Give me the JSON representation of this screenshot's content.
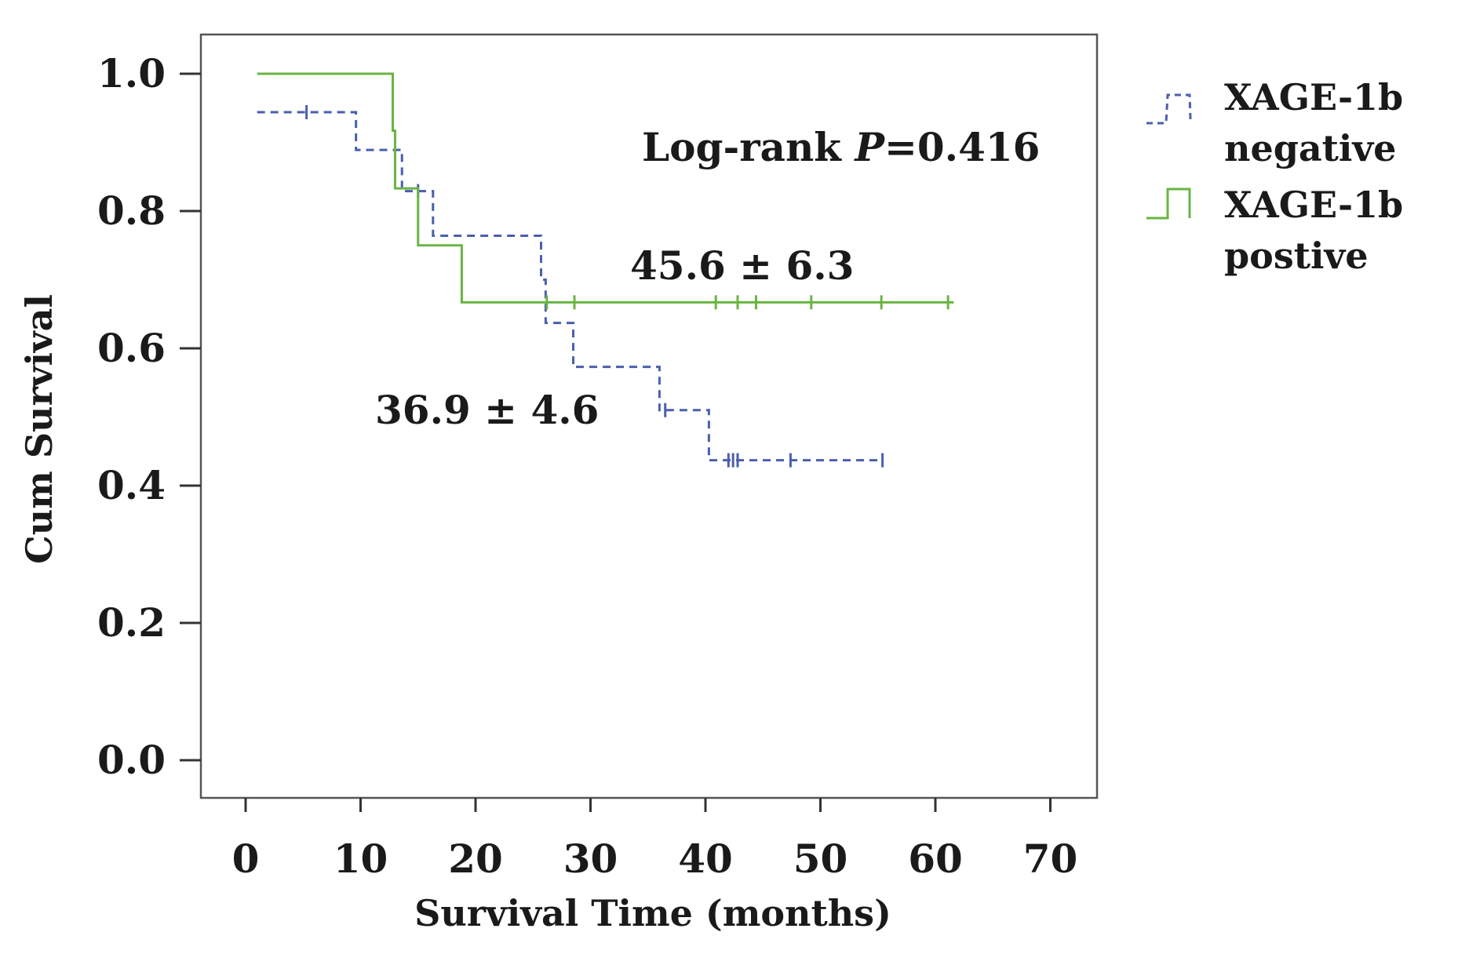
{
  "chart_data": {
    "type": "line",
    "subtype": "kaplan-meier",
    "title": "",
    "xlabel": "Survival Time (months)",
    "ylabel": "Cum Survival",
    "xlim": [
      -4,
      73
    ],
    "ylim": [
      -0.055,
      1.055
    ],
    "xticks": [
      0,
      10,
      20,
      30,
      40,
      50,
      60,
      70
    ],
    "xtick_labels": [
      "0",
      "10",
      "20",
      "30",
      "40",
      "50",
      "60",
      "70"
    ],
    "yticks": [
      0.0,
      0.2,
      0.4,
      0.6,
      0.8,
      1.0
    ],
    "ytick_labels": [
      "0.0",
      "0.2",
      "0.4",
      "0.6",
      "0.8",
      "1.0"
    ],
    "grid": false,
    "legend_position": "right",
    "series": [
      {
        "name": "XAGE-1b negative",
        "legend_line1": "XAGE-1b",
        "legend_line2": "negative",
        "color": "#4a5fad",
        "style": "dashed",
        "start_time": 1.0,
        "start_survival": 0.944,
        "steps": [
          {
            "t": 9.6,
            "s": 0.889
          },
          {
            "t": 13.6,
            "s": 0.829
          },
          {
            "t": 16.3,
            "s": 0.764
          },
          {
            "t": 25.7,
            "s": 0.7
          },
          {
            "t": 26.1,
            "s": 0.637
          },
          {
            "t": 28.5,
            "s": 0.573
          },
          {
            "t": 36.0,
            "s": 0.51
          },
          {
            "t": 40.3,
            "s": 0.437
          }
        ],
        "end_time": 55.4,
        "censored": [
          5.3,
          15.0,
          36.5,
          42.0,
          42.4,
          42.8,
          47.4,
          55.4
        ]
      },
      {
        "name": "XAGE-1b postive",
        "legend_line1": "XAGE-1b",
        "legend_line2": "postive",
        "color": "#6ab443",
        "style": "solid",
        "start_time": 1.0,
        "start_survival": 1.0,
        "steps": [
          {
            "t": 12.8,
            "s": 0.917
          },
          {
            "t": 13.0,
            "s": 0.833
          },
          {
            "t": 15.0,
            "s": 0.75
          },
          {
            "t": 18.8,
            "s": 0.667
          }
        ],
        "end_time": 61.6,
        "censored": [
          26.2,
          28.6,
          40.9,
          42.8,
          44.4,
          49.2,
          55.3,
          61.1
        ]
      }
    ],
    "annotations": [
      {
        "id": "logrank",
        "text_prefix": "Log-rank ",
        "text_italic": "P",
        "text_suffix": "=0.416",
        "x": 28.5,
        "y": 0.9
      },
      {
        "id": "pos-mean",
        "text": "45.6 ± 6.3",
        "x": 33.5,
        "y": 0.72
      },
      {
        "id": "neg-mean",
        "text": "36.9 ± 4.6",
        "x": 11.0,
        "y": 0.5
      }
    ]
  }
}
